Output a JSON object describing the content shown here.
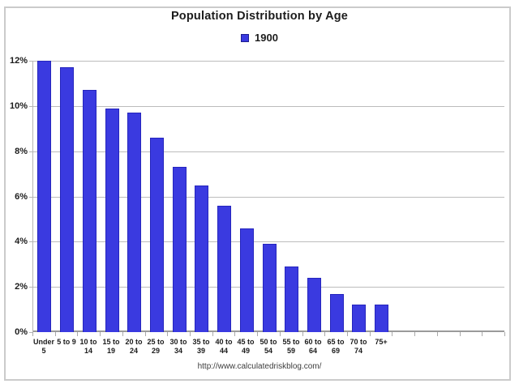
{
  "title": "Population Distribution by Age",
  "legend": {
    "label": "1900",
    "swatch_color": "#3a3ae0"
  },
  "footer": {
    "url": "http://www.calculatedriskblog.com/"
  },
  "colors": {
    "bar_fill": "#3a3ae0",
    "bar_border": "#2525bd",
    "gridline": "#bcbcbc",
    "axis_line": "#9a9a9a",
    "frame_border": "#cbcbcb",
    "text": "#1c1c1c"
  },
  "chart_data": {
    "type": "bar",
    "title": "Population Distribution by Age",
    "series": [
      {
        "name": "1900",
        "values": [
          12.0,
          11.7,
          10.7,
          9.9,
          9.7,
          8.6,
          7.3,
          6.5,
          5.6,
          4.6,
          3.9,
          2.9,
          2.4,
          1.7,
          1.2,
          1.2
        ]
      }
    ],
    "categories": [
      "Under 5",
      "5 to 9",
      "10 to 14",
      "15 to 19",
      "20 to 24",
      "25 to 29",
      "30 to 34",
      "35 to 39",
      "40 to 44",
      "45 to 49",
      "50 to 54",
      "55 to 59",
      "60 to 64",
      "65 to 69",
      "70 to 74",
      "75+"
    ],
    "category_label_lines": [
      [
        "Under",
        "5"
      ],
      [
        "5 to 9"
      ],
      [
        "10 to",
        "14"
      ],
      [
        "15 to",
        "19"
      ],
      [
        "20 to",
        "24"
      ],
      [
        "25 to",
        "29"
      ],
      [
        "30 to",
        "34"
      ],
      [
        "35 to",
        "39"
      ],
      [
        "40 to",
        "44"
      ],
      [
        "45 to",
        "49"
      ],
      [
        "50 to",
        "54"
      ],
      [
        "55 to",
        "59"
      ],
      [
        "60 to",
        "64"
      ],
      [
        "65 to",
        "69"
      ],
      [
        "70 to",
        "74"
      ],
      [
        "75+"
      ]
    ],
    "unit": "%",
    "xlabel": "",
    "ylabel": "",
    "ylim": [
      0,
      12
    ],
    "ytick_values": [
      0,
      2,
      4,
      6,
      8,
      10,
      12
    ],
    "ytick_labels": [
      "0%",
      "2%",
      "4%",
      "6%",
      "8%",
      "10%",
      "12%"
    ],
    "empty_trailing_slots": 5,
    "grid": true,
    "legend_position": "top-center"
  }
}
